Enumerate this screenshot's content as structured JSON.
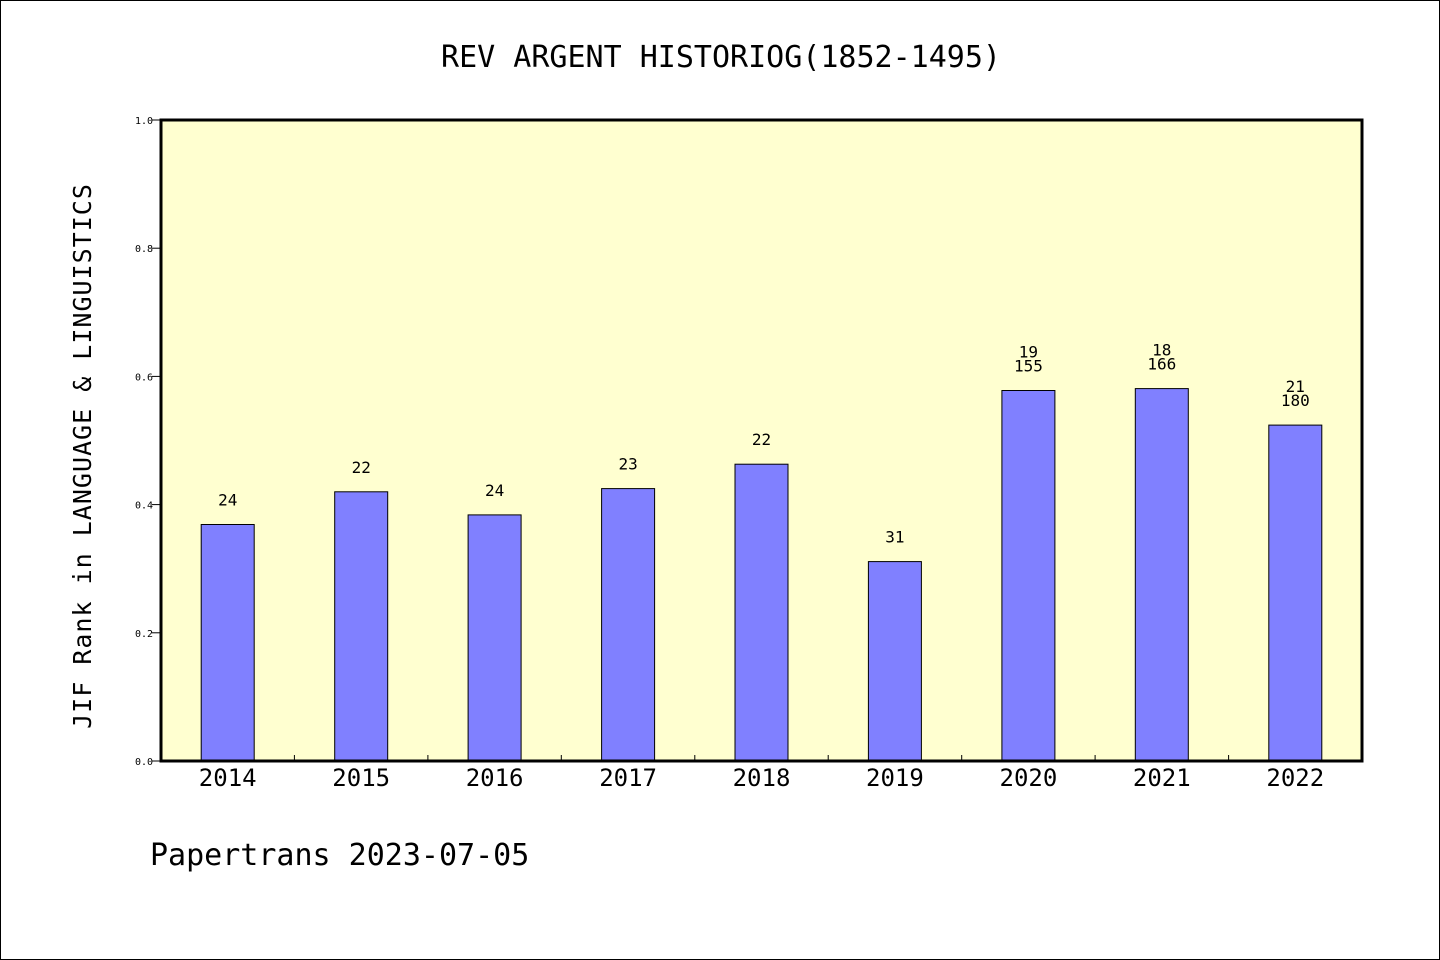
{
  "chart_data": {
    "type": "bar",
    "title": "REV ARGENT HISTORIOG(1852-1495)",
    "xlabel": "",
    "ylabel": "JIF Rank in LANGUAGE & LINGUISTICS",
    "ylim": [
      0.0,
      1.0
    ],
    "yticks": [
      "0.0",
      "0.2",
      "0.4",
      "0.6",
      "0.8",
      "1.0"
    ],
    "grid": false,
    "background_color": "#ffffd0",
    "bar_color": "#8080ff",
    "categories": [
      "2014",
      "2015",
      "2016",
      "2017",
      "2018",
      "2019",
      "2020",
      "2021",
      "2022"
    ],
    "values": [
      0.369,
      0.42,
      0.384,
      0.425,
      0.463,
      0.311,
      0.578,
      0.581,
      0.524
    ],
    "bar_labels": [
      [
        "24"
      ],
      [
        "22"
      ],
      [
        "24"
      ],
      [
        "23"
      ],
      [
        "22"
      ],
      [
        "31"
      ],
      [
        "19",
        "155"
      ],
      [
        "18",
        "166"
      ],
      [
        "21",
        "180"
      ]
    ]
  },
  "footer": {
    "text": "Papertrans 2023-07-05"
  }
}
